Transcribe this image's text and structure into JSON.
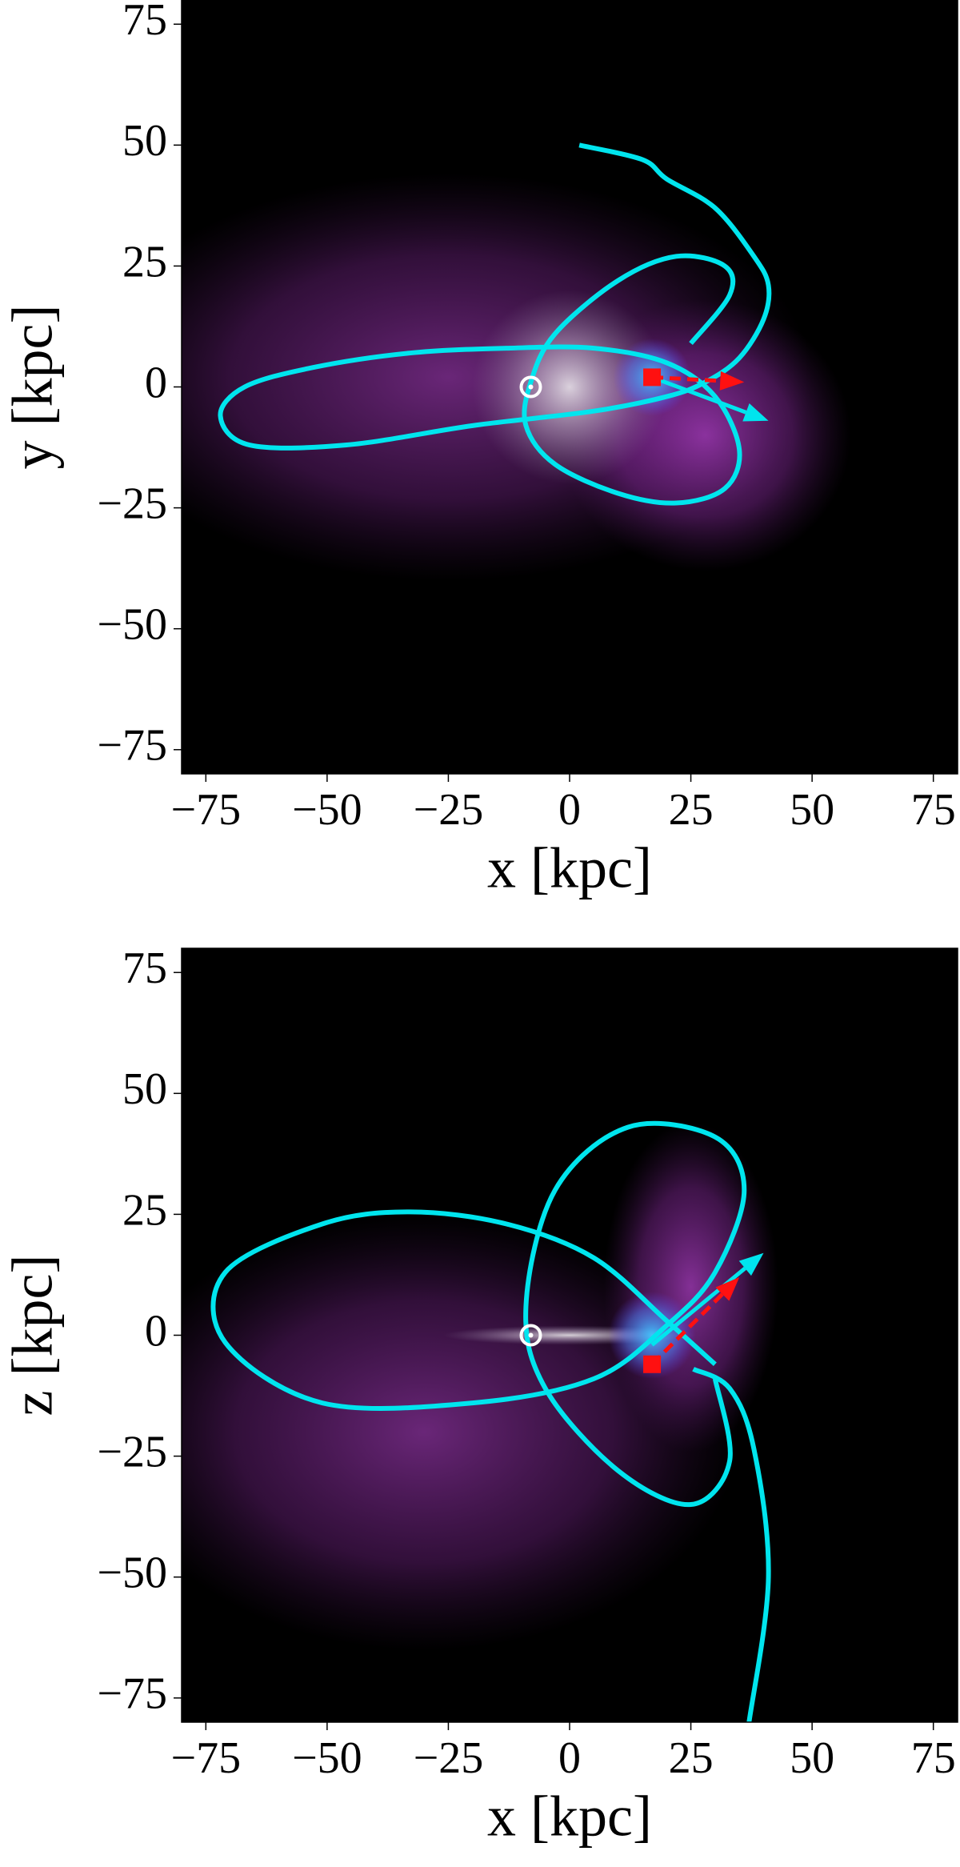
{
  "chart_data": [
    {
      "type": "line",
      "xlabel": "x [kpc]",
      "ylabel": "y [kpc]",
      "xlim": [
        -80,
        80
      ],
      "ylim": [
        -80,
        80
      ],
      "xticks": [
        {
          "value": -75,
          "label": "−75"
        },
        {
          "value": -50,
          "label": "−50"
        },
        {
          "value": -25,
          "label": "−25"
        },
        0,
        25,
        50,
        75
      ],
      "yticks": [
        {
          "value": -75,
          "label": "−75"
        },
        {
          "value": -50,
          "label": "−50"
        },
        {
          "value": -25,
          "label": "−25"
        },
        0,
        25,
        50,
        75
      ],
      "series": [
        {
          "color": "#00e5ee",
          "x": [
            2,
            15,
            20,
            30,
            38,
            41,
            40,
            35,
            28,
            20,
            5,
            -20,
            -46,
            -66,
            -72,
            -67,
            -53,
            -33,
            -13,
            5,
            20,
            30,
            35,
            32,
            22,
            10,
            -3,
            -9,
            -8,
            -3,
            10,
            22,
            32,
            33,
            25
          ],
          "values": [
            50,
            47,
            43,
            37,
            27,
            21,
            14,
            6,
            1,
            -2,
            -5,
            -8,
            -12,
            -12,
            -6,
            0,
            4,
            7,
            8,
            8,
            5,
            -2,
            -13,
            -21,
            -24,
            -22,
            -16,
            -8,
            1,
            11,
            22,
            27,
            25,
            19,
            9
          ]
        }
      ],
      "arrows": [
        {
          "color": "#00e5ee",
          "x": [
            17,
            41
          ],
          "y": [
            2,
            -7
          ]
        },
        {
          "color": "#ff1010",
          "x": [
            17,
            36
          ],
          "y": [
            2,
            1
          ]
        }
      ],
      "sun": {
        "x": -8,
        "y": 0
      },
      "satellite": {
        "x": 17,
        "y": 2,
        "color": "#ff1010"
      }
    },
    {
      "type": "line",
      "xlabel": "x [kpc]",
      "ylabel": "z [kpc]",
      "xlim": [
        -80,
        80
      ],
      "ylim": [
        -80,
        80
      ],
      "xticks": [
        {
          "value": -75,
          "label": "−75"
        },
        {
          "value": -50,
          "label": "−50"
        },
        {
          "value": -25,
          "label": "−25"
        },
        0,
        25,
        50,
        75
      ],
      "yticks": [
        {
          "value": -75,
          "label": "−75"
        },
        {
          "value": -50,
          "label": "−50"
        },
        {
          "value": -25,
          "label": "−25"
        },
        0,
        25,
        50,
        75
      ],
      "series": [
        {
          "color": "#00e5ee",
          "x": [
            37,
            41,
            38,
            33,
            25.5,
            null,
            30,
            33,
            25,
            10,
            -5,
            -9,
            -3,
            12,
            30,
            36,
            30,
            20,
            5,
            -20,
            -51,
            -71,
            -71,
            -51,
            -33,
            -13,
            5,
            20,
            30
          ],
          "values": [
            -80,
            -50,
            -23.5,
            -11,
            -7,
            null,
            -9,
            -26,
            -35,
            -28,
            -11,
            6,
            30,
            43,
            41,
            30,
            13,
            2,
            -9,
            -14,
            -14,
            -1.5,
            13,
            23,
            25.5,
            23,
            16,
            3,
            -6
          ]
        }
      ],
      "arrows": [
        {
          "color": "#00e5ee",
          "x": [
            17,
            40
          ],
          "y": [
            -2,
            17
          ]
        },
        {
          "color": "#ff1010",
          "x": [
            17,
            35
          ],
          "y": [
            -6,
            12
          ]
        }
      ],
      "sun": {
        "x": -8,
        "y": 0
      },
      "satellite": {
        "x": 17,
        "y": -6,
        "color": "#ff1010"
      }
    }
  ]
}
